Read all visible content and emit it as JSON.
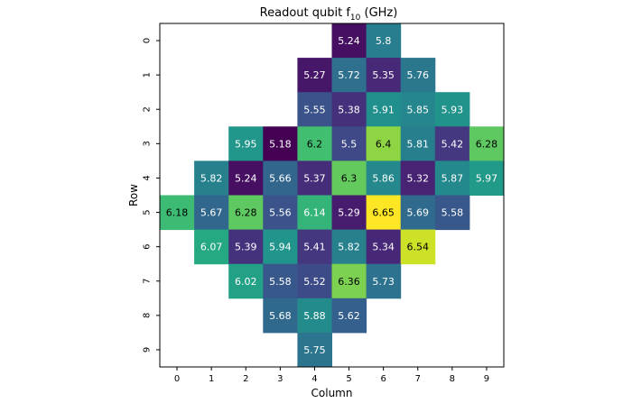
{
  "chart_data": {
    "type": "heatmap",
    "title_main": "Readout qubit f",
    "title_sub": "10",
    "title_unit": " (GHz)",
    "xlabel": "Column",
    "ylabel": "Row",
    "x_ticks": [
      "0",
      "1",
      "2",
      "3",
      "4",
      "5",
      "6",
      "7",
      "8",
      "9"
    ],
    "y_ticks": [
      "0",
      "1",
      "2",
      "3",
      "4",
      "5",
      "6",
      "7",
      "8",
      "9"
    ],
    "colormap": "viridis",
    "vmin": 5.18,
    "vmax": 6.65,
    "cells": [
      {
        "row": 0,
        "col": 5,
        "value": 5.24,
        "label": "5.24"
      },
      {
        "row": 0,
        "col": 6,
        "value": 5.8,
        "label": "5.8"
      },
      {
        "row": 1,
        "col": 4,
        "value": 5.27,
        "label": "5.27"
      },
      {
        "row": 1,
        "col": 5,
        "value": 5.72,
        "label": "5.72"
      },
      {
        "row": 1,
        "col": 6,
        "value": 5.35,
        "label": "5.35"
      },
      {
        "row": 1,
        "col": 7,
        "value": 5.76,
        "label": "5.76"
      },
      {
        "row": 2,
        "col": 4,
        "value": 5.55,
        "label": "5.55"
      },
      {
        "row": 2,
        "col": 5,
        "value": 5.38,
        "label": "5.38"
      },
      {
        "row": 2,
        "col": 6,
        "value": 5.91,
        "label": "5.91"
      },
      {
        "row": 2,
        "col": 7,
        "value": 5.85,
        "label": "5.85"
      },
      {
        "row": 2,
        "col": 8,
        "value": 5.93,
        "label": "5.93"
      },
      {
        "row": 3,
        "col": 2,
        "value": 5.95,
        "label": "5.95"
      },
      {
        "row": 3,
        "col": 3,
        "value": 5.18,
        "label": "5.18"
      },
      {
        "row": 3,
        "col": 4,
        "value": 6.2,
        "label": "6.2"
      },
      {
        "row": 3,
        "col": 5,
        "value": 5.5,
        "label": "5.5"
      },
      {
        "row": 3,
        "col": 6,
        "value": 6.4,
        "label": "6.4"
      },
      {
        "row": 3,
        "col": 7,
        "value": 5.81,
        "label": "5.81"
      },
      {
        "row": 3,
        "col": 8,
        "value": 5.42,
        "label": "5.42"
      },
      {
        "row": 3,
        "col": 9,
        "value": 6.28,
        "label": "6.28"
      },
      {
        "row": 4,
        "col": 1,
        "value": 5.82,
        "label": "5.82"
      },
      {
        "row": 4,
        "col": 2,
        "value": 5.24,
        "label": "5.24"
      },
      {
        "row": 4,
        "col": 3,
        "value": 5.66,
        "label": "5.66"
      },
      {
        "row": 4,
        "col": 4,
        "value": 5.37,
        "label": "5.37"
      },
      {
        "row": 4,
        "col": 5,
        "value": 6.3,
        "label": "6.3"
      },
      {
        "row": 4,
        "col": 6,
        "value": 5.86,
        "label": "5.86"
      },
      {
        "row": 4,
        "col": 7,
        "value": 5.32,
        "label": "5.32"
      },
      {
        "row": 4,
        "col": 8,
        "value": 5.87,
        "label": "5.87"
      },
      {
        "row": 4,
        "col": 9,
        "value": 5.97,
        "label": "5.97"
      },
      {
        "row": 5,
        "col": 0,
        "value": 6.18,
        "label": "6.18"
      },
      {
        "row": 5,
        "col": 1,
        "value": 5.67,
        "label": "5.67"
      },
      {
        "row": 5,
        "col": 2,
        "value": 6.28,
        "label": "6.28"
      },
      {
        "row": 5,
        "col": 3,
        "value": 5.56,
        "label": "5.56"
      },
      {
        "row": 5,
        "col": 4,
        "value": 6.14,
        "label": "6.14"
      },
      {
        "row": 5,
        "col": 5,
        "value": 5.29,
        "label": "5.29"
      },
      {
        "row": 5,
        "col": 6,
        "value": 6.65,
        "label": "6.65"
      },
      {
        "row": 5,
        "col": 7,
        "value": 5.69,
        "label": "5.69"
      },
      {
        "row": 5,
        "col": 8,
        "value": 5.58,
        "label": "5.58"
      },
      {
        "row": 6,
        "col": 1,
        "value": 6.07,
        "label": "6.07"
      },
      {
        "row": 6,
        "col": 2,
        "value": 5.39,
        "label": "5.39"
      },
      {
        "row": 6,
        "col": 3,
        "value": 5.94,
        "label": "5.94"
      },
      {
        "row": 6,
        "col": 4,
        "value": 5.41,
        "label": "5.41"
      },
      {
        "row": 6,
        "col": 5,
        "value": 5.82,
        "label": "5.82"
      },
      {
        "row": 6,
        "col": 6,
        "value": 5.34,
        "label": "5.34"
      },
      {
        "row": 6,
        "col": 7,
        "value": 6.54,
        "label": "6.54"
      },
      {
        "row": 7,
        "col": 2,
        "value": 6.02,
        "label": "6.02"
      },
      {
        "row": 7,
        "col": 3,
        "value": 5.58,
        "label": "5.58"
      },
      {
        "row": 7,
        "col": 4,
        "value": 5.52,
        "label": "5.52"
      },
      {
        "row": 7,
        "col": 5,
        "value": 6.36,
        "label": "6.36"
      },
      {
        "row": 7,
        "col": 6,
        "value": 5.73,
        "label": "5.73"
      },
      {
        "row": 8,
        "col": 3,
        "value": 5.68,
        "label": "5.68"
      },
      {
        "row": 8,
        "col": 4,
        "value": 5.88,
        "label": "5.88"
      },
      {
        "row": 8,
        "col": 5,
        "value": 5.62,
        "label": "5.62"
      },
      {
        "row": 9,
        "col": 4,
        "value": 5.75,
        "label": "5.75"
      }
    ]
  }
}
